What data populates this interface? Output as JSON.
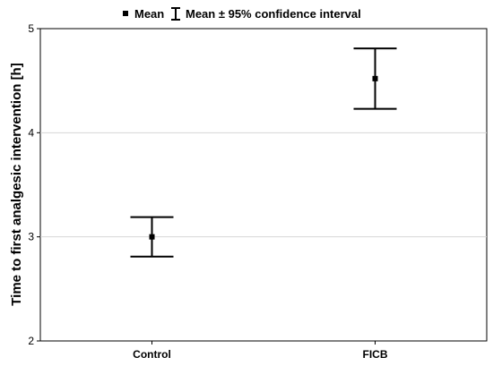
{
  "chart_data": {
    "type": "errorbar",
    "categories": [
      "Control",
      "FICB"
    ],
    "series": [
      {
        "means": [
          3.0,
          4.52
        ],
        "ci_lower": [
          2.81,
          4.23
        ],
        "ci_upper": [
          3.19,
          4.81
        ]
      }
    ],
    "xlabel": "",
    "ylabel": "Time to first analgesic intervention [h]",
    "ylim": [
      2,
      5
    ],
    "yticks": [
      2,
      3,
      4,
      5
    ],
    "grid": true,
    "legend": {
      "position": "top-center",
      "mean_label": "Mean",
      "ci_label": "Mean ± 95% confidence interval"
    }
  }
}
